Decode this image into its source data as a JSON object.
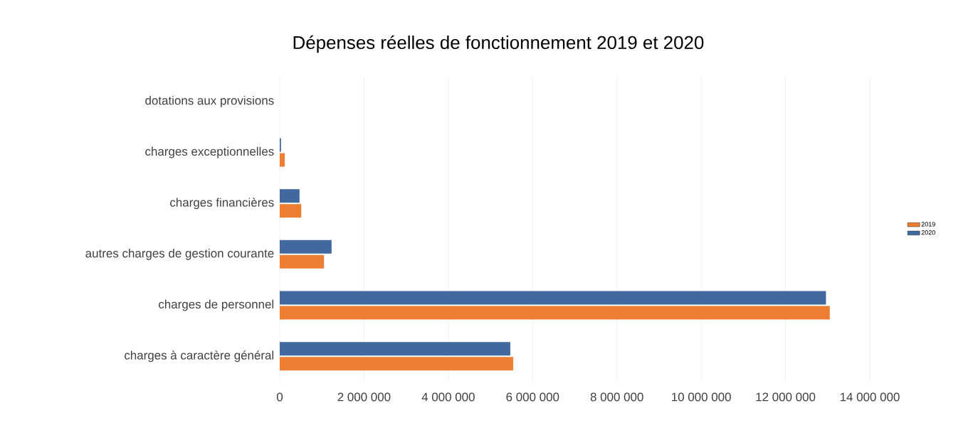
{
  "chart_data": {
    "type": "bar",
    "orientation": "horizontal",
    "title": "Dépenses réelles de fonctionnement 2019 et 2020",
    "categories": [
      "dotations aux provisions",
      "charges exceptionnelles",
      "charges financières",
      "autres charges de gestion courante",
      "charges de personnel",
      "charges à caractère général"
    ],
    "series": [
      {
        "name": "2019",
        "color": "#ed7d31",
        "values": [
          0,
          120000,
          510000,
          1050000,
          13050000,
          5540000
        ]
      },
      {
        "name": "2020",
        "color": "#41689f",
        "values": [
          0,
          30000,
          470000,
          1230000,
          12960000,
          5470000
        ]
      }
    ],
    "xlim": [
      0,
      14000000
    ],
    "xticks": [
      0,
      {
        "value": 2000000,
        "label": "2 000 000"
      },
      {
        "value": 4000000,
        "label": "4 000 000"
      },
      {
        "value": 6000000,
        "label": "6 000 000"
      },
      {
        "value": 8000000,
        "label": "8 000 000"
      },
      {
        "value": 10000000,
        "label": "10 000 000"
      },
      {
        "value": 12000000,
        "label": "12 000 000"
      },
      {
        "value": 14000000,
        "label": "14 000 000"
      }
    ],
    "grid": "x",
    "legend": "right"
  }
}
